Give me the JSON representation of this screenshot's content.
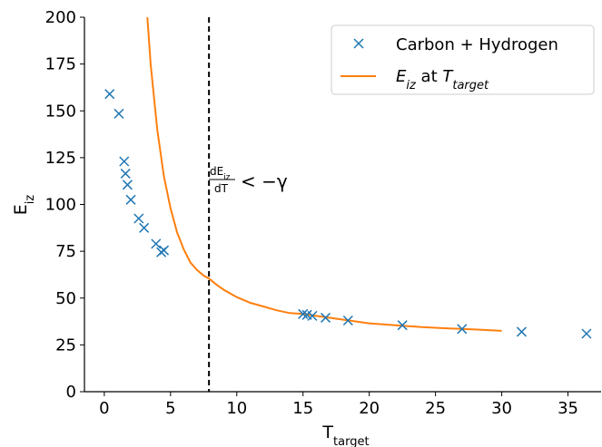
{
  "chart_data": {
    "type": "scatter",
    "xlabel": {
      "base": "T",
      "sub": "target"
    },
    "ylabel": {
      "base": "E",
      "sub": "iz"
    },
    "xlim": [
      -1.5,
      37.5
    ],
    "ylim": [
      0,
      200
    ],
    "xticks": [
      "0",
      "5",
      "10",
      "15",
      "20",
      "25",
      "30",
      "35"
    ],
    "yticks": [
      "0",
      "25",
      "50",
      "75",
      "100",
      "125",
      "150",
      "175",
      "200"
    ],
    "grid": false,
    "legend_position": "top-right",
    "colors": {
      "scatter": "#1f77b4",
      "curve": "#ff7f0e",
      "vline": "#000000"
    },
    "series": [
      {
        "name": "Carbon + Hydrogen",
        "kind": "scatter",
        "marker": "x",
        "x": [
          0.4,
          1.1,
          1.5,
          1.6,
          1.75,
          2.0,
          2.6,
          3.0,
          3.9,
          4.3,
          4.5,
          15.0,
          15.3,
          15.7,
          16.7,
          18.4,
          22.5,
          27.0,
          31.5,
          36.4
        ],
        "y": [
          159,
          148.5,
          123,
          116.5,
          110.5,
          102.5,
          92.5,
          87.5,
          79,
          74.5,
          75.5,
          41.5,
          41,
          40.5,
          39.5,
          38,
          35.5,
          33.5,
          32,
          31
        ]
      },
      {
        "name_parts": {
          "e": "E",
          "e_sub": "iz",
          "mid": " at ",
          "t": "T",
          "t_sub": "target"
        },
        "kind": "line",
        "x": [
          3.25,
          3.5,
          4.0,
          4.5,
          5.0,
          5.5,
          6.0,
          6.5,
          7.0,
          7.5,
          7.9,
          8.5,
          9.0,
          10.0,
          11.0,
          12.0,
          13.0,
          14.0,
          15.0,
          16.0,
          18.0,
          20.0,
          22.0,
          24.0,
          26.0,
          28.0,
          30.0
        ],
        "y": [
          200,
          175,
          140,
          115,
          98,
          85,
          76,
          69,
          65,
          62,
          60.5,
          57,
          54.5,
          50.5,
          47.5,
          45.5,
          43.5,
          42,
          41.5,
          40.5,
          38.5,
          36.5,
          35.5,
          34.5,
          33.8,
          33.2,
          32.5
        ]
      }
    ],
    "vline": {
      "x": 7.9,
      "style": "dashed"
    },
    "annotation": {
      "frac_num": "dE",
      "frac_num_sub": "iz",
      "frac_den": "dT",
      "rel": "< −γ",
      "x": 7.9,
      "y": 114
    }
  }
}
